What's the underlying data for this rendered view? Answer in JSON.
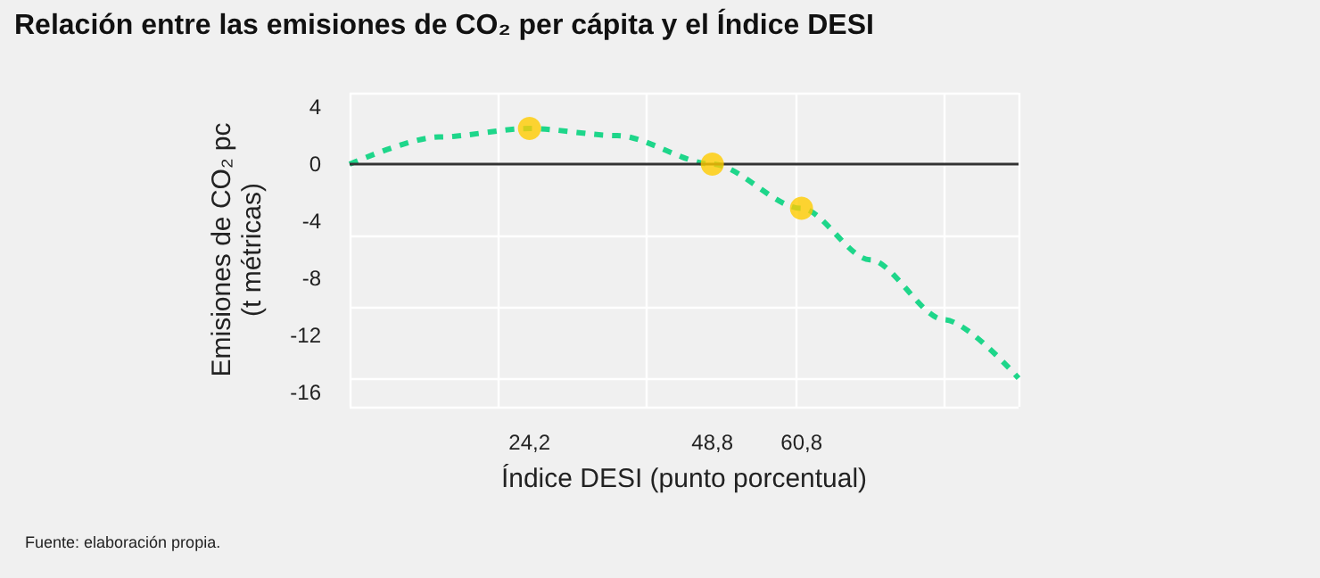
{
  "chart_data": {
    "type": "line",
    "title": "Relación entre las emisiones de CO₂ per cápita y el Índice DESI",
    "xlabel": "Índice DESI (punto porcentual)",
    "ylabel": "Emisiones de CO₂ pc\n(t métricas)",
    "annotations": [
      "Fuente: elaboración propia."
    ],
    "series": [
      {
        "color": "#1ed68a",
        "line_style": "dashed",
        "marker": "none",
        "x": [
          0,
          12,
          24.2,
          36,
          48.8,
          60.8,
          70,
          80,
          90
        ],
        "values": [
          0,
          1.9,
          2.5,
          2,
          0,
          -3.1,
          -6.7,
          -10.9,
          -15
        ]
      },
      {
        "type": "scatter",
        "color": "#ffcc00",
        "marker": "circle",
        "x": [
          24.2,
          48.8,
          60.8
        ],
        "values": [
          2.5,
          0,
          -3.1
        ]
      }
    ],
    "xlim": [
      0,
      90
    ],
    "xticks": [
      {
        "value": 0,
        "label": null
      },
      {
        "value": 24.2,
        "label": "24,2"
      },
      {
        "value": 48.8,
        "label": "48,8"
      },
      {
        "value": 60.8,
        "label": "60,8"
      },
      {
        "value": 90,
        "label": null
      }
    ],
    "ylim": [
      -17,
      5
    ],
    "yticks": [
      4,
      0,
      -4,
      -8,
      -12,
      -16
    ],
    "ref_lines": [
      {
        "axis": "y",
        "value": 0,
        "color": "#333333"
      }
    ],
    "grid": true
  }
}
